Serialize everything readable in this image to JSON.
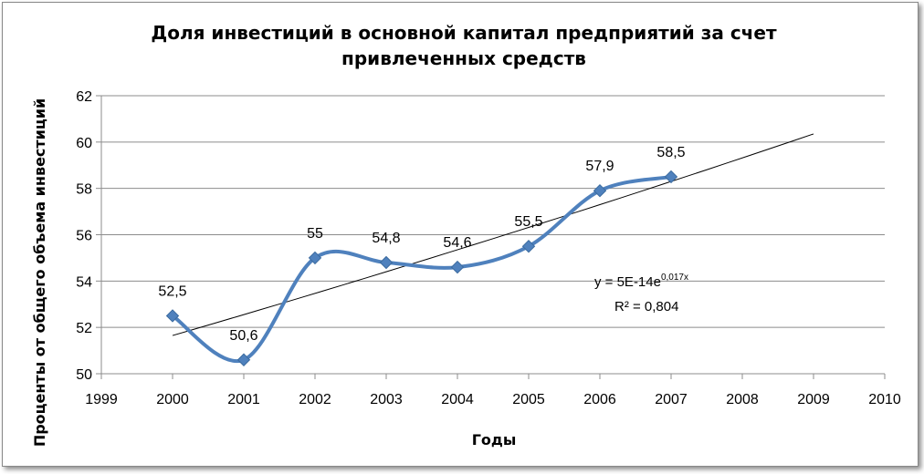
{
  "chart_data": {
    "type": "line",
    "title_line1": "Доля инвестиций в основной капитал предприятий за счет",
    "title_line2": "привлеченных средств",
    "xlabel": "Годы",
    "ylabel": "Проценты от общего объема инвестиций",
    "xlim": [
      1999,
      2010
    ],
    "ylim": [
      50,
      62
    ],
    "x_ticks": [
      "1999",
      "2000",
      "2001",
      "2002",
      "2003",
      "2004",
      "2005",
      "2006",
      "2007",
      "2008",
      "2009",
      "2010"
    ],
    "y_ticks": [
      "50",
      "52",
      "54",
      "56",
      "58",
      "60",
      "62"
    ],
    "grid": "horizontal",
    "series": [
      {
        "x": [
          2000,
          2001,
          2002,
          2003,
          2004,
          2005,
          2006,
          2007
        ],
        "values": [
          52.5,
          50.6,
          55,
          54.8,
          54.6,
          55.5,
          57.9,
          58.5
        ],
        "labels": [
          "52,5",
          "50,6",
          "55",
          "54,8",
          "54,6",
          "55,5",
          "57,9",
          "58,5"
        ],
        "color": "#4F81BD",
        "marker": "diamond",
        "smooth": true
      }
    ],
    "trendline": {
      "type": "exponential",
      "x_range": [
        2000,
        2009
      ],
      "y_range": [
        51.65,
        60.35
      ],
      "color": "#000000",
      "equation_main": "y = 5E-14e",
      "equation_exp": "0,017x",
      "r2_text": "R² = 0,804"
    }
  }
}
